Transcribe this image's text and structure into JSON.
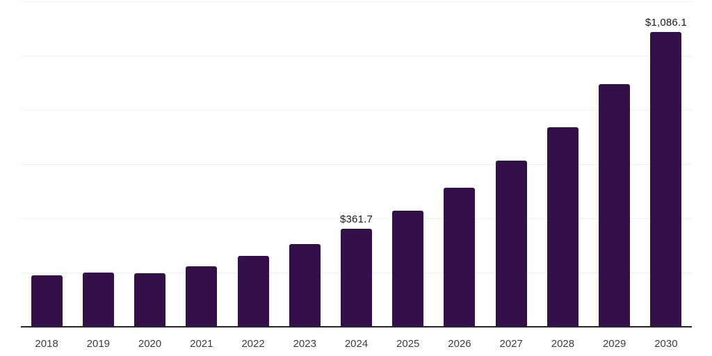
{
  "chart_data": {
    "type": "bar",
    "title": "",
    "xlabel": "",
    "ylabel": "",
    "categories": [
      "2018",
      "2019",
      "2020",
      "2021",
      "2022",
      "2023",
      "2024",
      "2025",
      "2026",
      "2027",
      "2028",
      "2029",
      "2030"
    ],
    "values": [
      188.5,
      200.5,
      198.3,
      223.9,
      261.5,
      305.2,
      361.7,
      428.2,
      512.8,
      612.8,
      735.9,
      894.8,
      1086.1
    ],
    "value_labels": {
      "2024": "$361.7",
      "2030": "$1,086.1"
    },
    "ylim": [
      0,
      1200
    ],
    "gridline_interval": 200,
    "grid": true,
    "legend_position": "none",
    "colors": {
      "bar": "#34104B",
      "axis_line": "#262626",
      "gridline": "#f0f0f0",
      "tick_label": "#3d3d3d",
      "value_label": "#1a1a1a",
      "background": "#ffffff"
    }
  }
}
